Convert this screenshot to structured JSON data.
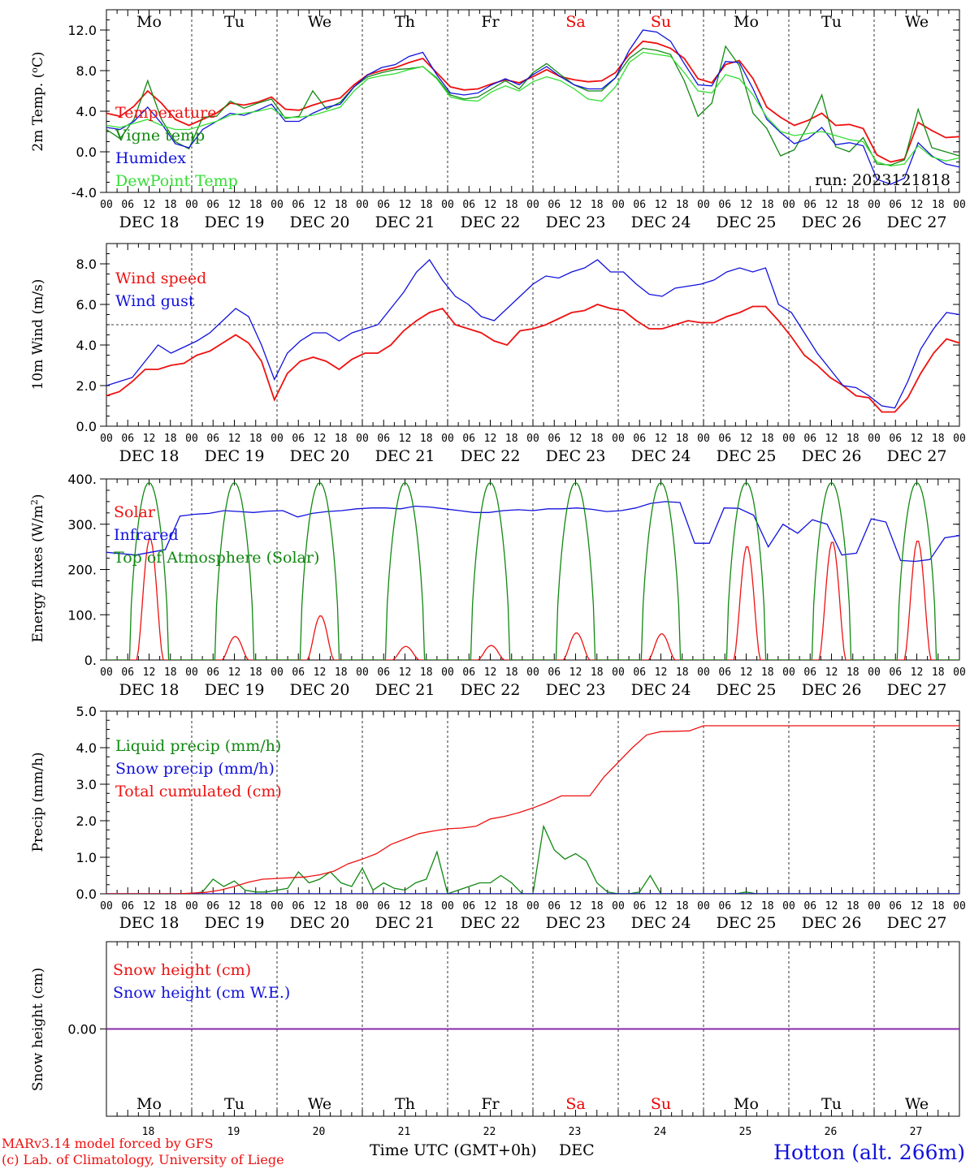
{
  "days": [
    "DEC 18",
    "DEC 19",
    "DEC 20",
    "DEC 21",
    "DEC 22",
    "DEC 23",
    "DEC 24",
    "DEC 25",
    "DEC 26",
    "DEC 27"
  ],
  "weekdays": [
    "Mo",
    "Tu",
    "We",
    "Th",
    "Fr",
    "Sa",
    "Su",
    "Mo",
    "Tu",
    "We"
  ],
  "weekday_colors": [
    "#000000",
    "#000000",
    "#000000",
    "#000000",
    "#000000",
    "#ee0000",
    "#ee0000",
    "#000000",
    "#000000",
    "#000000"
  ],
  "hour_labels": [
    "00",
    "06",
    "12",
    "18"
  ],
  "bottom_day_numbers": [
    "18",
    "19",
    "20",
    "21",
    "22",
    "23",
    "24",
    "25",
    "26",
    "27"
  ],
  "footer": {
    "model": "MARv3.14 model forced by GFS",
    "lab": "(c) Lab. of Climatology, University of Liege",
    "xlabel": "Time UTC (GMT+0h)",
    "month": "DEC",
    "location": "Hotton (alt. 266m)",
    "run": "run: 2023121818"
  },
  "colors": {
    "red": "#ee1111",
    "dark_green": "#118811",
    "blue": "#1111dd",
    "light_green": "#33dd33",
    "purple": "#8822aa"
  },
  "chart_data": [
    {
      "type": "line",
      "ylabel": "2m Temp. (oC)",
      "ylim": [
        -4,
        14
      ],
      "yticks": [
        "-4.0",
        "0.0",
        "4.0",
        "8.0",
        "12.0"
      ],
      "x_unit": "hours since DEC 18 00 UTC (3-hourly)",
      "series": [
        {
          "name": "Temperature",
          "color": "#ee1111",
          "values": [
            3.8,
            3.5,
            4.5,
            6.0,
            4.8,
            3.2,
            2.6,
            3.2,
            3.8,
            4.8,
            4.6,
            4.9,
            5.4,
            4.2,
            4.1,
            4.6,
            5.0,
            5.3,
            6.6,
            7.6,
            8.0,
            8.3,
            8.8,
            9.2,
            7.8,
            6.4,
            6.1,
            6.2,
            6.7,
            7.1,
            6.8,
            7.4,
            8.1,
            7.4,
            7.1,
            6.9,
            7.0,
            7.8,
            9.6,
            10.9,
            10.7,
            10.2,
            9.2,
            7.2,
            6.8,
            8.6,
            9.0,
            7.2,
            4.4,
            3.4,
            2.6,
            3.1,
            3.8,
            2.6,
            2.7,
            2.3,
            -0.3,
            -1.0,
            -0.7,
            2.9,
            2.1,
            1.4,
            1.5
          ]
        },
        {
          "name": "Vigne temp",
          "color": "#118811",
          "values": [
            2.2,
            1.3,
            3.2,
            7.0,
            3.2,
            1.0,
            0.3,
            3.4,
            3.5,
            5.0,
            4.3,
            4.8,
            5.2,
            3.3,
            3.5,
            6.0,
            4.2,
            4.9,
            6.4,
            7.4,
            7.8,
            8.1,
            8.2,
            8.4,
            7.3,
            5.6,
            5.2,
            5.4,
            6.2,
            7.0,
            6.2,
            7.8,
            8.7,
            7.6,
            6.6,
            6.0,
            6.0,
            7.3,
            9.2,
            10.2,
            10.0,
            9.6,
            7.0,
            3.5,
            4.8,
            10.4,
            8.5,
            3.8,
            2.3,
            -0.4,
            0.2,
            2.6,
            5.6,
            0.5,
            0.0,
            1.4,
            -1.2,
            -1.3,
            -0.8,
            4.2,
            0.4,
            0.0,
            -0.4
          ]
        },
        {
          "name": "Humidex",
          "color": "#1111dd",
          "values": [
            2.4,
            2.2,
            3.0,
            4.4,
            2.8,
            0.8,
            0.4,
            2.2,
            3.0,
            3.8,
            3.6,
            4.1,
            4.7,
            3.0,
            3.0,
            3.8,
            4.4,
            4.7,
            6.4,
            7.6,
            8.3,
            8.6,
            9.4,
            9.8,
            7.6,
            5.8,
            5.6,
            5.8,
            6.6,
            7.2,
            6.6,
            7.6,
            8.4,
            7.4,
            6.6,
            6.2,
            6.2,
            7.3,
            10.0,
            12.0,
            11.8,
            10.9,
            8.7,
            6.6,
            6.5,
            8.9,
            8.8,
            6.2,
            3.2,
            1.9,
            0.8,
            1.3,
            2.4,
            0.7,
            0.9,
            0.6,
            -2.7,
            -3.2,
            -2.6,
            0.9,
            -0.4,
            -1.2,
            -1.5
          ]
        },
        {
          "name": "DewPoint Temp",
          "color": "#33dd33",
          "values": [
            2.6,
            2.4,
            2.8,
            3.2,
            2.6,
            2.2,
            2.2,
            2.6,
            3.0,
            3.6,
            3.8,
            4.0,
            4.3,
            3.4,
            3.4,
            3.6,
            4.0,
            4.4,
            6.0,
            7.2,
            7.5,
            7.7,
            8.1,
            8.4,
            7.2,
            5.4,
            5.1,
            5.0,
            5.9,
            6.5,
            6.0,
            6.9,
            7.4,
            7.0,
            6.2,
            5.2,
            5.0,
            6.4,
            8.8,
            9.8,
            9.6,
            9.4,
            7.8,
            6.0,
            5.8,
            7.6,
            7.2,
            5.6,
            3.4,
            2.0,
            1.6,
            1.8,
            2.0,
            1.6,
            1.2,
            1.0,
            -1.0,
            -1.4,
            -1.2,
            0.6,
            -0.5,
            -0.9,
            -0.6
          ]
        }
      ]
    },
    {
      "type": "line",
      "ylabel": "10m Wind (m/s)",
      "ylim": [
        0,
        9
      ],
      "yticks": [
        "0.0",
        "2.0",
        "4.0",
        "6.0",
        "8.0"
      ],
      "reference_line": 5.0,
      "series": [
        {
          "name": "Wind speed",
          "color": "#ee1111",
          "values": [
            1.5,
            1.7,
            2.2,
            2.8,
            2.8,
            3.0,
            3.1,
            3.5,
            3.7,
            4.1,
            4.5,
            4.1,
            3.2,
            1.3,
            2.6,
            3.2,
            3.4,
            3.2,
            2.8,
            3.3,
            3.6,
            3.6,
            4.0,
            4.7,
            5.2,
            5.6,
            5.8,
            5.0,
            4.8,
            4.6,
            4.2,
            4.0,
            4.7,
            4.8,
            5.0,
            5.3,
            5.6,
            5.7,
            6.0,
            5.8,
            5.7,
            5.2,
            4.8,
            4.8,
            5.0,
            5.2,
            5.1,
            5.1,
            5.4,
            5.6,
            5.9,
            5.9,
            5.2,
            4.4,
            3.5,
            3.0,
            2.4,
            2.0,
            1.5,
            1.4,
            0.7,
            0.7,
            1.4,
            2.6,
            3.6,
            4.3,
            4.1
          ]
        },
        {
          "name": "Wind gust",
          "color": "#1111dd",
          "values": [
            2.0,
            2.2,
            2.4,
            3.2,
            4.0,
            3.6,
            3.9,
            4.2,
            4.6,
            5.2,
            5.8,
            5.4,
            4.0,
            2.3,
            3.6,
            4.2,
            4.6,
            4.6,
            4.2,
            4.6,
            4.8,
            5.0,
            5.8,
            6.6,
            7.6,
            8.2,
            7.2,
            6.4,
            6.0,
            5.4,
            5.2,
            5.8,
            6.4,
            7.0,
            7.4,
            7.3,
            7.6,
            7.8,
            8.2,
            7.6,
            7.6,
            7.0,
            6.5,
            6.4,
            6.8,
            6.9,
            7.0,
            7.2,
            7.6,
            7.8,
            7.6,
            7.8,
            6.0,
            5.6,
            4.6,
            3.6,
            2.8,
            2.0,
            1.9,
            1.5,
            1.0,
            0.9,
            2.2,
            3.8,
            4.8,
            5.6,
            5.5
          ]
        }
      ]
    },
    {
      "type": "line",
      "ylabel": "Energy fluxes (W/m2)",
      "ylim": [
        0,
        400
      ],
      "yticks": [
        "0.",
        "100.",
        "200.",
        "300.",
        "400."
      ],
      "series": [
        {
          "name": "Solar",
          "color": "#ee1111",
          "daily_peaks": [
            270,
            52,
            98,
            30,
            32,
            60,
            58,
            252,
            262,
            265
          ]
        },
        {
          "name": "Infrared",
          "color": "#1111dd",
          "values": [
            238,
            235,
            232,
            238,
            244,
            318,
            322,
            324,
            330,
            328,
            326,
            329,
            330,
            316,
            324,
            328,
            330,
            334,
            336,
            336,
            334,
            340,
            338,
            334,
            330,
            326,
            326,
            330,
            332,
            330,
            334,
            334,
            336,
            333,
            328,
            330,
            336,
            346,
            350,
            348,
            258,
            258,
            336,
            335,
            320,
            250,
            300,
            280,
            310,
            300,
            232,
            236,
            312,
            305,
            220,
            218,
            222,
            270,
            275
          ]
        },
        {
          "name": "Top of Atmosphere (Solar)",
          "color": "#118811",
          "daily_peaks": [
            392,
            392,
            392,
            392,
            392,
            392,
            392,
            392,
            392,
            392
          ]
        }
      ]
    },
    {
      "type": "line",
      "ylabel": "Precip (mm/h)",
      "ylim": [
        0,
        5
      ],
      "yticks": [
        "0.0",
        "1.0",
        "2.0",
        "3.0",
        "4.0",
        "5.0"
      ],
      "series": [
        {
          "name": "Liquid precip (mm/h)",
          "color": "#118811",
          "values": [
            0,
            0,
            0,
            0,
            0,
            0,
            0,
            0,
            0,
            0.05,
            0.4,
            0.2,
            0.35,
            0.1,
            0.05,
            0.05,
            0.1,
            0.15,
            0.6,
            0.3,
            0.4,
            0.6,
            0.3,
            0.2,
            0.7,
            0.1,
            0.3,
            0.15,
            0.1,
            0.3,
            0.4,
            1.15,
            0,
            0.1,
            0.2,
            0.3,
            0.3,
            0.5,
            0.3,
            0,
            0,
            1.85,
            1.2,
            0.95,
            1.1,
            0.9,
            0.3,
            0.05,
            0,
            0,
            0.05,
            0.5,
            0,
            0,
            0,
            0,
            0,
            0,
            0,
            0,
            0.05,
            0,
            0,
            0,
            0,
            0,
            0,
            0,
            0,
            0,
            0,
            0,
            0,
            0,
            0,
            0,
            0,
            0,
            0,
            0,
            0
          ]
        },
        {
          "name": "Snow precip (mm/h)",
          "color": "#1111dd",
          "values": [
            0,
            0
          ]
        },
        {
          "name": "Total cumulated (cm)",
          "color": "#ee1111",
          "values": [
            0,
            0,
            0,
            0,
            0,
            0,
            0.02,
            0.04,
            0.1,
            0.2,
            0.32,
            0.4,
            0.42,
            0.44,
            0.46,
            0.52,
            0.62,
            0.82,
            0.95,
            1.1,
            1.35,
            1.5,
            1.65,
            1.72,
            1.78,
            1.8,
            1.85,
            2.05,
            2.12,
            2.22,
            2.35,
            2.5,
            2.68,
            2.68,
            2.68,
            3.2,
            3.6,
            4.0,
            4.35,
            4.44,
            4.45,
            4.46,
            4.6,
            4.6,
            4.6,
            4.6,
            4.6,
            4.6,
            4.6,
            4.6,
            4.6,
            4.6,
            4.6,
            4.6,
            4.6,
            4.6,
            4.6,
            4.6,
            4.6,
            4.6,
            4.6
          ]
        }
      ]
    },
    {
      "type": "line",
      "ylabel": "Snow height (cm)",
      "ylim": [
        -1,
        1
      ],
      "yticks": [
        "0.00"
      ],
      "series": [
        {
          "name": "Snow height (cm)",
          "color": "#ee1111",
          "values": [
            0,
            0
          ]
        },
        {
          "name": "Snow height (cm W.E.)",
          "color": "#1111dd",
          "values": [
            0,
            0
          ]
        }
      ]
    }
  ]
}
